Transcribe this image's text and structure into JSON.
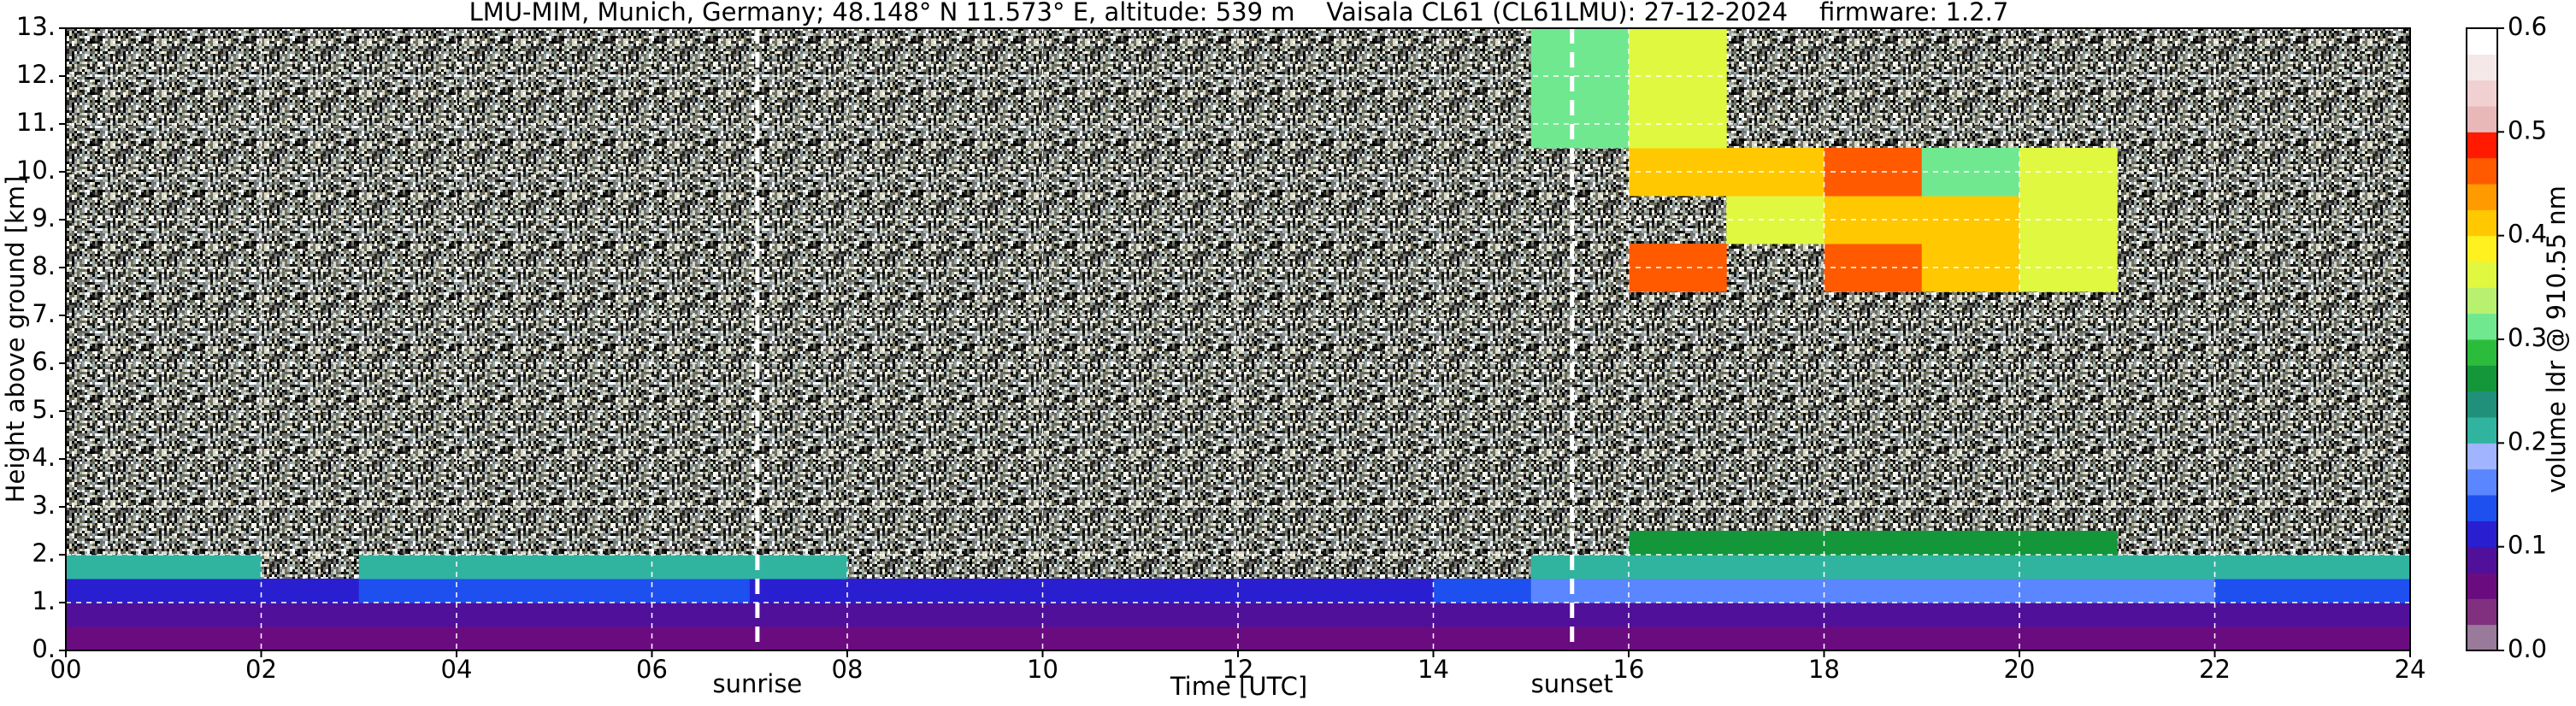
{
  "chart_data": {
    "type": "heatmap",
    "title": "LMU-MIM, Munich, Germany; 48.148° N 11.573° E, altitude: 539 m    Vaisala CL61 (CL61LMU): 27-12-2024    firmware: 1.2.7",
    "x_label": "Time [UTC]",
    "y_label": "Height above ground [km]",
    "colorbar_label": "volume ldr @ 910.55 nm",
    "xlim": [
      0,
      24
    ],
    "xticks": [
      {
        "value": 0,
        "label": "00"
      },
      {
        "value": 2,
        "label": "02"
      },
      {
        "value": 4,
        "label": "04"
      },
      {
        "value": 6,
        "label": "06"
      },
      {
        "value": 8,
        "label": "08"
      },
      10,
      12,
      14,
      16,
      18,
      20,
      22,
      24
    ],
    "ylim": [
      0,
      13
    ],
    "yticks": [
      {
        "value": 0,
        "label": "0."
      },
      {
        "value": 1,
        "label": "1."
      },
      {
        "value": 2,
        "label": "2."
      },
      {
        "value": 3,
        "label": "3."
      },
      {
        "value": 4,
        "label": "4."
      },
      {
        "value": 5,
        "label": "5."
      },
      {
        "value": 6,
        "label": "6."
      },
      {
        "value": 7,
        "label": "7."
      },
      {
        "value": 8,
        "label": "8."
      },
      {
        "value": 9,
        "label": "9."
      },
      {
        "value": 10,
        "label": "10."
      },
      {
        "value": 11,
        "label": "11."
      },
      {
        "value": 12,
        "label": "12."
      },
      {
        "value": 13,
        "label": "13."
      }
    ],
    "grid": true,
    "clim": [
      0,
      0.6
    ],
    "cticks": [
      {
        "value": 0,
        "label": "0.0"
      },
      0.1,
      0.2,
      0.3,
      0.4,
      0.5,
      0.6
    ],
    "colorscale": [
      "#9a7a9a",
      "#80307f",
      "#6a0c80",
      "#50109a",
      "#2a1fd0",
      "#1e50f0",
      "#5a86ff",
      "#a0b4ff",
      "#30b4a0",
      "#20907a",
      "#14963a",
      "#2cbc3c",
      "#70e890",
      "#b8f070",
      "#e0f840",
      "#fff020",
      "#ffc800",
      "#ff9a00",
      "#ff5a00",
      "#ff1a00",
      "#e8b8b8",
      "#f0d0d0",
      "#f5e8e8",
      "#ffffff"
    ],
    "x_bins": [
      0,
      1,
      2,
      3,
      4,
      5,
      6,
      7,
      8,
      9,
      10,
      11,
      12,
      13,
      14,
      15,
      16,
      17,
      18,
      19,
      20,
      21,
      22,
      23,
      24
    ],
    "y_bins": [
      0,
      0.5,
      1,
      1.5,
      2,
      2.5,
      3,
      7.5,
      8.5,
      9.5,
      10.5,
      13
    ],
    "z": [
      [
        0.05,
        0.05,
        0.05,
        0.05,
        0.05,
        0.05,
        0.05,
        0.05,
        0.05,
        0.05,
        0.05,
        0.05,
        0.05,
        0.05,
        0.05,
        0.05,
        0.05,
        0.05,
        0.05,
        0.05,
        0.05,
        0.05,
        0.05,
        0.05
      ],
      [
        0.08,
        0.08,
        0.08,
        0.08,
        0.08,
        0.08,
        0.08,
        0.08,
        0.08,
        0.08,
        0.08,
        0.08,
        0.08,
        0.08,
        0.08,
        0.08,
        0.08,
        0.08,
        0.08,
        0.08,
        0.08,
        0.08,
        0.08,
        0.08
      ],
      [
        0.12,
        0.12,
        0.12,
        0.13,
        0.13,
        0.13,
        0.13,
        0.12,
        0.12,
        0.12,
        0.12,
        0.12,
        0.12,
        0.12,
        0.13,
        0.15,
        0.15,
        0.15,
        0.15,
        0.15,
        0.15,
        0.15,
        0.13,
        0.13
      ],
      [
        0.2,
        0.2,
        null,
        0.2,
        0.2,
        0.2,
        0.2,
        0.2,
        null,
        null,
        null,
        null,
        null,
        null,
        null,
        0.2,
        0.2,
        0.2,
        0.2,
        0.2,
        0.2,
        0.2,
        0.2,
        0.2
      ],
      [
        null,
        null,
        null,
        null,
        null,
        null,
        null,
        null,
        null,
        null,
        null,
        null,
        null,
        null,
        null,
        null,
        0.25,
        0.25,
        0.25,
        0.25,
        0.25,
        null,
        null,
        null
      ],
      [
        null,
        null,
        null,
        null,
        null,
        null,
        null,
        null,
        null,
        null,
        null,
        null,
        null,
        null,
        null,
        null,
        null,
        null,
        null,
        null,
        null,
        null,
        null,
        null
      ],
      [
        null,
        null,
        null,
        null,
        null,
        null,
        null,
        null,
        null,
        null,
        null,
        null,
        null,
        null,
        null,
        null,
        null,
        null,
        null,
        null,
        null,
        null,
        null,
        null
      ],
      [
        null,
        null,
        null,
        null,
        null,
        null,
        null,
        null,
        null,
        null,
        null,
        null,
        null,
        null,
        null,
        null,
        0.45,
        null,
        0.45,
        0.4,
        0.35,
        null,
        null,
        null
      ],
      [
        null,
        null,
        null,
        null,
        null,
        null,
        null,
        null,
        null,
        null,
        null,
        null,
        null,
        null,
        null,
        null,
        null,
        0.35,
        0.4,
        0.4,
        0.35,
        null,
        null,
        null
      ],
      [
        null,
        null,
        null,
        null,
        null,
        null,
        null,
        null,
        null,
        null,
        null,
        null,
        null,
        null,
        null,
        null,
        0.4,
        0.4,
        0.45,
        0.3,
        0.35,
        null,
        null,
        null
      ],
      [
        null,
        null,
        null,
        null,
        null,
        null,
        null,
        null,
        null,
        null,
        null,
        null,
        null,
        null,
        null,
        0.3,
        0.35,
        null,
        null,
        null,
        null,
        null,
        null,
        null
      ]
    ],
    "annotations": [
      {
        "x": 7.08,
        "label": "sunrise"
      },
      {
        "x": 15.42,
        "label": "sunset"
      }
    ]
  }
}
